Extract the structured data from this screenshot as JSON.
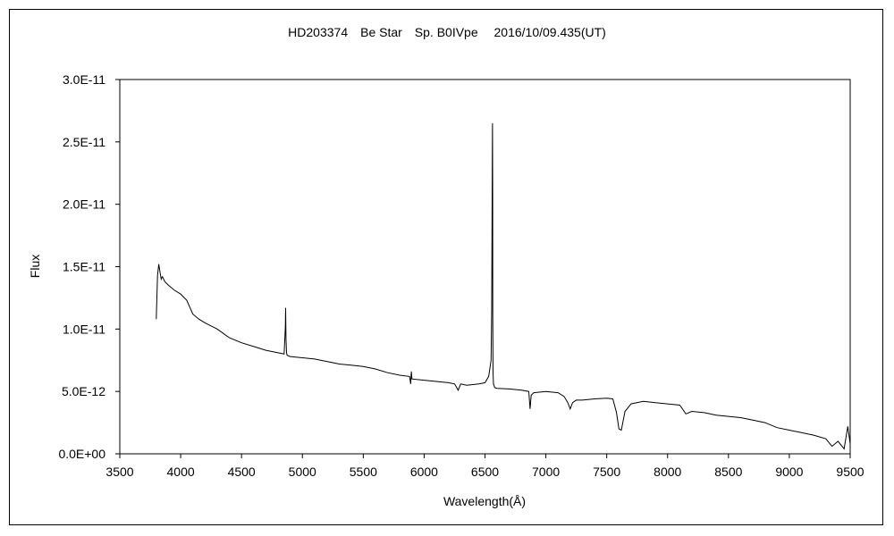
{
  "chart_data": {
    "type": "line",
    "title": "HD203374　Be Star　Sp. B0IVpe　 2016/10/09.435(UT)",
    "xlabel": "Wavelength(Å)",
    "ylabel": "Flux",
    "xlim": [
      3500,
      9500
    ],
    "ylim": [
      0,
      3e-11
    ],
    "x_ticks": [
      "3500",
      "4000",
      "4500",
      "5000",
      "5500",
      "6000",
      "6500",
      "7000",
      "7500",
      "8000",
      "8500",
      "9000",
      "9500"
    ],
    "y_ticks": [
      "0.0E+00",
      "5.0E-12",
      "1.0E-11",
      "1.5E-11",
      "2.0E-11",
      "2.5E-11",
      "3.0E-11"
    ],
    "grid": false,
    "legend": "none",
    "line_color": "#000000",
    "series": [
      {
        "x": [
          3800,
          3810,
          3820,
          3830,
          3840,
          3850,
          3870,
          3900,
          3950,
          4000,
          4050,
          4100,
          4150,
          4200,
          4300,
          4400,
          4500,
          4600,
          4700,
          4800,
          4850,
          4860,
          4862,
          4865,
          4870,
          4875,
          4900,
          5000,
          5100,
          5200,
          5300,
          5400,
          5500,
          5600,
          5700,
          5800,
          5880,
          5890,
          5895,
          5900,
          6000,
          6100,
          6200,
          6250,
          6280,
          6300,
          6350,
          6400,
          6450,
          6500,
          6530,
          6550,
          6555,
          6560,
          6562,
          6563,
          6564,
          6566,
          6570,
          6580,
          6600,
          6700,
          6800,
          6860,
          6870,
          6880,
          6900,
          7000,
          7100,
          7150,
          7180,
          7200,
          7220,
          7250,
          7300,
          7400,
          7500,
          7550,
          7580,
          7600,
          7620,
          7650,
          7700,
          7800,
          7900,
          8000,
          8100,
          8150,
          8200,
          8300,
          8400,
          8500,
          8600,
          8700,
          8800,
          8900,
          9000,
          9100,
          9200,
          9300,
          9350,
          9400,
          9450,
          9480,
          9500
        ],
        "y": [
          1.08e-11,
          1.43e-11,
          1.52e-11,
          1.46e-11,
          1.4e-11,
          1.42e-11,
          1.38e-11,
          1.35e-11,
          1.31e-11,
          1.28e-11,
          1.23e-11,
          1.12e-11,
          1.08e-11,
          1.05e-11,
          1e-11,
          9.3e-12,
          8.9e-12,
          8.6e-12,
          8.3e-12,
          8.1e-12,
          8e-12,
          1.02e-11,
          1.17e-11,
          9.2e-12,
          8.1e-12,
          7.9e-12,
          7.8e-12,
          7.7e-12,
          7.6e-12,
          7.4e-12,
          7.2e-12,
          7.1e-12,
          7e-12,
          6.8e-12,
          6.5e-12,
          6.3e-12,
          6.2e-12,
          5.6e-12,
          6.6e-12,
          6e-12,
          5.9e-12,
          5.8e-12,
          5.7e-12,
          5.6e-12,
          5.1e-12,
          5.6e-12,
          5.5e-12,
          5.55e-12,
          5.6e-12,
          5.7e-12,
          6.2e-12,
          7.5e-12,
          1.15e-11,
          2.4e-11,
          2.65e-11,
          2.1e-11,
          1.1e-11,
          6.5e-12,
          5.6e-12,
          5.3e-12,
          5.25e-12,
          5.2e-12,
          5.1e-12,
          5e-12,
          3.6e-12,
          4.7e-12,
          4.9e-12,
          5e-12,
          4.9e-12,
          4.6e-12,
          4.1e-12,
          3.6e-12,
          4.1e-12,
          4.3e-12,
          4.3e-12,
          4.4e-12,
          4.45e-12,
          4.4e-12,
          3.3e-12,
          2e-12,
          1.9e-12,
          3.4e-12,
          4e-12,
          4.2e-12,
          4.1e-12,
          4e-12,
          3.9e-12,
          3.2e-12,
          3.4e-12,
          3.3e-12,
          3.1e-12,
          3e-12,
          2.9e-12,
          2.7e-12,
          2.5e-12,
          2.1e-12,
          1.9e-12,
          1.7e-12,
          1.5e-12,
          1.2e-12,
          6e-13,
          1e-12,
          4e-13,
          2.2e-12,
          8e-13
        ]
      }
    ]
  }
}
